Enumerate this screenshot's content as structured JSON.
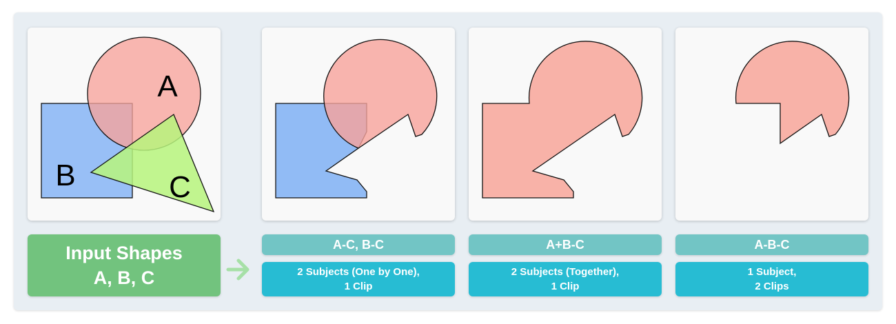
{
  "colors": {
    "shape_a": "#f7a39b",
    "shape_b": "#7fb0f5",
    "shape_c": "#b7f57c",
    "result": "#f8b2a8",
    "input_box": "#72c37e",
    "label_top": "#72c5c5",
    "label_bottom": "#27bcd3",
    "arrow": "#a6e0a6"
  },
  "input": {
    "title_line1": "Input Shapes",
    "title_line2": "A, B, C",
    "shape_labels": {
      "a": "A",
      "b": "B",
      "c": "C"
    }
  },
  "arrow_icon": "right-arrow-icon",
  "operations": [
    {
      "expression": "A-C, B-C",
      "desc_line1": "2 Subjects (One by One),",
      "desc_line2": "1 Clip"
    },
    {
      "expression": "A+B-C",
      "desc_line1": "2 Subjects (Together),",
      "desc_line2": "1 Clip"
    },
    {
      "expression": "A-B-C",
      "desc_line1": "1 Subject,",
      "desc_line2": "2 Clips"
    }
  ]
}
